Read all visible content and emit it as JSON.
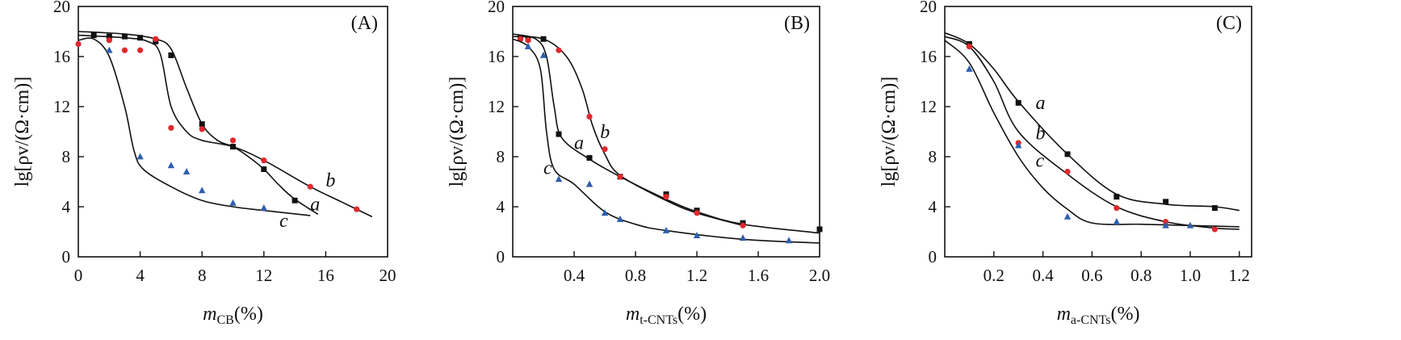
{
  "colors": {
    "a": "#111111",
    "b": "#e0282c",
    "c": "#2f5fae"
  },
  "chart_data": [
    {
      "type": "scatter",
      "panel_label": "(A)",
      "xlabel": {
        "main": "m",
        "sub": "CB",
        "unit": "(%)"
      },
      "ylabel": "lg[ρv/(Ω·cm)]",
      "xlim": [
        0,
        20
      ],
      "ylim": [
        0,
        20
      ],
      "xticks": [
        0,
        4,
        8,
        12,
        16,
        20
      ],
      "xtick_labels": [
        "0",
        "4",
        "8",
        "12",
        "16",
        "20"
      ],
      "yticks": [
        0,
        4,
        8,
        12,
        16,
        20
      ],
      "ytick_labels": [
        "0",
        "4",
        "8",
        "12",
        "16",
        "20"
      ],
      "series": [
        {
          "name": "a",
          "marker": "square",
          "color": "#111111",
          "points": [
            [
              1,
              17.7
            ],
            [
              2,
              17.6
            ],
            [
              3,
              17.6
            ],
            [
              4,
              17.5
            ],
            [
              5,
              17.2
            ],
            [
              6,
              16.1
            ],
            [
              8,
              10.6
            ],
            [
              10,
              8.8
            ],
            [
              12,
              7.0
            ],
            [
              14,
              4.5
            ]
          ],
          "curve": [
            [
              0,
              18.0
            ],
            [
              3,
              17.8
            ],
            [
              5,
              17.4
            ],
            [
              6,
              16.6
            ],
            [
              7,
              13.5
            ],
            [
              8,
              10.6
            ],
            [
              9,
              9.3
            ],
            [
              10,
              8.8
            ],
            [
              11,
              8.0
            ],
            [
              12,
              7.0
            ],
            [
              13,
              5.7
            ],
            [
              14,
              4.6
            ],
            [
              15.5,
              3.4
            ]
          ]
        },
        {
          "name": "b",
          "marker": "circle",
          "color": "#e0282c",
          "points": [
            [
              0,
              17.0
            ],
            [
              2,
              17.3
            ],
            [
              3,
              16.5
            ],
            [
              4,
              16.5
            ],
            [
              5,
              17.4
            ],
            [
              6,
              10.3
            ],
            [
              8,
              10.2
            ],
            [
              10,
              9.3
            ],
            [
              12,
              7.7
            ],
            [
              15,
              5.6
            ],
            [
              18,
              3.8
            ]
          ],
          "curve": [
            [
              0,
              17.7
            ],
            [
              3,
              17.5
            ],
            [
              4.5,
              17.2
            ],
            [
              5.3,
              16.2
            ],
            [
              6,
              12.0
            ],
            [
              7,
              10.0
            ],
            [
              8,
              9.3
            ],
            [
              10,
              8.8
            ],
            [
              12,
              7.7
            ],
            [
              15,
              5.6
            ],
            [
              17,
              4.4
            ],
            [
              19,
              3.2
            ]
          ]
        },
        {
          "name": "c",
          "marker": "triangle",
          "color": "#2f5fae",
          "points": [
            [
              2,
              16.5
            ],
            [
              4,
              8.0
            ],
            [
              6,
              7.3
            ],
            [
              7,
              6.8
            ],
            [
              8,
              5.3
            ],
            [
              10,
              4.3
            ],
            [
              12,
              3.9
            ]
          ],
          "curve": [
            [
              0,
              17.3
            ],
            [
              1,
              17.4
            ],
            [
              2,
              16.0
            ],
            [
              3,
              12.0
            ],
            [
              3.6,
              8.5
            ],
            [
              4.2,
              7.0
            ],
            [
              6,
              5.6
            ],
            [
              8,
              4.5
            ],
            [
              10,
              4.0
            ],
            [
              12,
              3.7
            ],
            [
              15,
              3.3
            ]
          ]
        }
      ],
      "annotations": [
        {
          "text": "a",
          "x": 15.0,
          "y": 3.7
        },
        {
          "text": "b",
          "x": 16.0,
          "y": 5.6
        },
        {
          "text": "c",
          "x": 13.0,
          "y": 2.4
        }
      ]
    },
    {
      "type": "scatter",
      "panel_label": "(B)",
      "xlabel": {
        "main": "m",
        "sub": "t-CNTs",
        "unit": "(%)"
      },
      "ylabel": "lg[ρv/(Ω·cm)]",
      "xlim": [
        0,
        2.0
      ],
      "ylim": [
        0,
        20
      ],
      "xticks": [
        0.4,
        0.8,
        1.2,
        1.6,
        2.0
      ],
      "xtick_labels": [
        "0.4",
        "0.8",
        "1.2",
        "1.6",
        "2.0"
      ],
      "yticks": [
        0,
        4,
        8,
        12,
        16,
        20
      ],
      "ytick_labels": [
        "0",
        "4",
        "8",
        "12",
        "16",
        "20"
      ],
      "series": [
        {
          "name": "a",
          "marker": "square",
          "color": "#111111",
          "points": [
            [
              0.05,
              17.5
            ],
            [
              0.1,
              17.4
            ],
            [
              0.2,
              17.4
            ],
            [
              0.3,
              9.8
            ],
            [
              0.5,
              7.9
            ],
            [
              0.7,
              6.4
            ],
            [
              1.0,
              5.0
            ],
            [
              1.2,
              3.7
            ],
            [
              1.5,
              2.7
            ],
            [
              2.0,
              2.2
            ]
          ],
          "curve": [
            [
              0,
              17.8
            ],
            [
              0.15,
              17.4
            ],
            [
              0.22,
              16.0
            ],
            [
              0.27,
              12.0
            ],
            [
              0.32,
              9.5
            ],
            [
              0.5,
              7.8
            ],
            [
              0.7,
              6.4
            ],
            [
              1.0,
              4.6
            ],
            [
              1.2,
              3.6
            ],
            [
              1.5,
              2.6
            ],
            [
              2.0,
              1.9
            ]
          ]
        },
        {
          "name": "b",
          "marker": "circle",
          "color": "#e0282c",
          "points": [
            [
              0.05,
              17.4
            ],
            [
              0.1,
              17.3
            ],
            [
              0.3,
              16.5
            ],
            [
              0.5,
              11.2
            ],
            [
              0.6,
              8.6
            ],
            [
              0.7,
              6.4
            ],
            [
              1.0,
              4.8
            ],
            [
              1.2,
              3.5
            ],
            [
              1.5,
              2.5
            ]
          ],
          "curve": [
            [
              0,
              17.6
            ],
            [
              0.2,
              17.4
            ],
            [
              0.35,
              16.0
            ],
            [
              0.45,
              13.5
            ],
            [
              0.52,
              10.5
            ],
            [
              0.6,
              8.2
            ],
            [
              0.7,
              6.5
            ],
            [
              1.0,
              4.5
            ],
            [
              1.2,
              3.5
            ],
            [
              1.5,
              2.5
            ]
          ]
        },
        {
          "name": "c",
          "marker": "triangle",
          "color": "#2f5fae",
          "points": [
            [
              0.1,
              16.8
            ],
            [
              0.2,
              16.1
            ],
            [
              0.3,
              6.2
            ],
            [
              0.5,
              5.8
            ],
            [
              0.6,
              3.5
            ],
            [
              0.7,
              3.0
            ],
            [
              1.0,
              2.1
            ],
            [
              1.2,
              1.7
            ],
            [
              1.5,
              1.5
            ],
            [
              1.8,
              1.3
            ]
          ],
          "curve": [
            [
              0,
              17.4
            ],
            [
              0.1,
              16.8
            ],
            [
              0.18,
              15.0
            ],
            [
              0.22,
              10.0
            ],
            [
              0.27,
              7.0
            ],
            [
              0.4,
              5.8
            ],
            [
              0.6,
              3.6
            ],
            [
              0.8,
              2.6
            ],
            [
              1.0,
              2.1
            ],
            [
              1.5,
              1.4
            ],
            [
              2.0,
              1.1
            ]
          ]
        }
      ],
      "annotations": [
        {
          "text": "a",
          "x": 0.4,
          "y": 8.6
        },
        {
          "text": "b",
          "x": 0.57,
          "y": 9.5
        },
        {
          "text": "c",
          "x": 0.2,
          "y": 6.6
        }
      ]
    },
    {
      "type": "scatter",
      "panel_label": "(C)",
      "xlabel": {
        "main": "m",
        "sub": "a-CNTs",
        "unit": "(%)"
      },
      "ylabel": "lg[ρv/(Ω·cm)]",
      "xlim": [
        0,
        1.25
      ],
      "ylim": [
        0,
        20
      ],
      "xticks": [
        0.2,
        0.4,
        0.6,
        0.8,
        1.0,
        1.2
      ],
      "xtick_labels": [
        "0.2",
        "0.4",
        "0.6",
        "0.8",
        "1.0",
        "1.2"
      ],
      "yticks": [
        0,
        4,
        8,
        12,
        16,
        20
      ],
      "ytick_labels": [
        "0",
        "4",
        "8",
        "12",
        "16",
        "20"
      ],
      "series": [
        {
          "name": "a",
          "marker": "square",
          "color": "#111111",
          "points": [
            [
              0.1,
              17.0
            ],
            [
              0.3,
              12.3
            ],
            [
              0.5,
              8.2
            ],
            [
              0.7,
              4.8
            ],
            [
              0.9,
              4.4
            ],
            [
              1.1,
              3.9
            ]
          ],
          "curve": [
            [
              0,
              17.9
            ],
            [
              0.1,
              17.0
            ],
            [
              0.2,
              15.0
            ],
            [
              0.3,
              12.4
            ],
            [
              0.5,
              8.2
            ],
            [
              0.7,
              5.0
            ],
            [
              0.9,
              4.2
            ],
            [
              1.1,
              4.0
            ],
            [
              1.2,
              3.7
            ]
          ]
        },
        {
          "name": "b",
          "marker": "circle",
          "color": "#e0282c",
          "points": [
            [
              0.1,
              16.8
            ],
            [
              0.3,
              9.1
            ],
            [
              0.5,
              6.8
            ],
            [
              0.7,
              3.9
            ],
            [
              0.9,
              2.8
            ],
            [
              1.1,
              2.2
            ]
          ],
          "curve": [
            [
              0,
              17.6
            ],
            [
              0.1,
              16.8
            ],
            [
              0.2,
              14.0
            ],
            [
              0.3,
              10.0
            ],
            [
              0.5,
              6.6
            ],
            [
              0.7,
              4.0
            ],
            [
              0.9,
              2.8
            ],
            [
              1.1,
              2.3
            ],
            [
              1.2,
              2.2
            ]
          ]
        },
        {
          "name": "c",
          "marker": "triangle",
          "color": "#2f5fae",
          "points": [
            [
              0.1,
              15.0
            ],
            [
              0.3,
              8.9
            ],
            [
              0.5,
              3.2
            ],
            [
              0.7,
              2.8
            ],
            [
              0.9,
              2.5
            ],
            [
              1.0,
              2.5
            ]
          ],
          "curve": [
            [
              0,
              17.3
            ],
            [
              0.1,
              15.5
            ],
            [
              0.2,
              11.5
            ],
            [
              0.3,
              8.0
            ],
            [
              0.4,
              5.5
            ],
            [
              0.5,
              3.8
            ],
            [
              0.6,
              2.7
            ],
            [
              0.8,
              2.6
            ],
            [
              1.0,
              2.5
            ],
            [
              1.2,
              2.4
            ]
          ]
        }
      ],
      "annotations": [
        {
          "text": "a",
          "x": 0.37,
          "y": 11.8
        },
        {
          "text": "b",
          "x": 0.37,
          "y": 9.4
        },
        {
          "text": "c",
          "x": 0.37,
          "y": 7.2
        }
      ]
    }
  ]
}
